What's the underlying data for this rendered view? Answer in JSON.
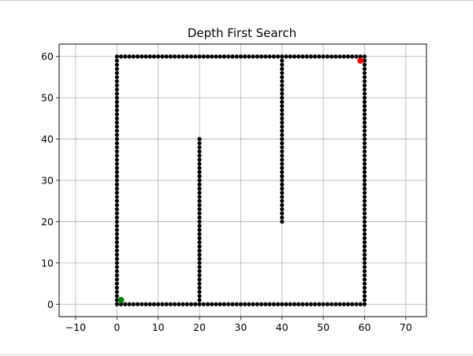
{
  "chart_data": {
    "type": "scatter",
    "title": "Depth First Search",
    "xlabel": "",
    "ylabel": "",
    "xlim": [
      -14,
      75
    ],
    "ylim": [
      -3,
      63
    ],
    "xticks": [
      -10,
      0,
      10,
      20,
      30,
      40,
      50,
      60,
      70
    ],
    "yticks": [
      0,
      10,
      20,
      30,
      40,
      50,
      60
    ],
    "grid": true,
    "series": [
      {
        "color": "#000000",
        "segments": [
          {
            "x1": 0,
            "y1": 0,
            "x2": 60,
            "y2": 0
          },
          {
            "x1": 0,
            "y1": 60,
            "x2": 60,
            "y2": 60
          },
          {
            "x1": 0,
            "y1": 0,
            "x2": 0,
            "y2": 60
          },
          {
            "x1": 60,
            "y1": 0,
            "x2": 60,
            "y2": 60
          },
          {
            "x1": 20,
            "y1": 0,
            "x2": 20,
            "y2": 40
          },
          {
            "x1": 40,
            "y1": 20,
            "x2": 40,
            "y2": 60
          }
        ],
        "step": 1
      }
    ],
    "start": {
      "x": 1,
      "y": 1,
      "color": "#008000"
    },
    "goal": {
      "x": 59,
      "y": 59,
      "color": "#ff0000"
    }
  }
}
